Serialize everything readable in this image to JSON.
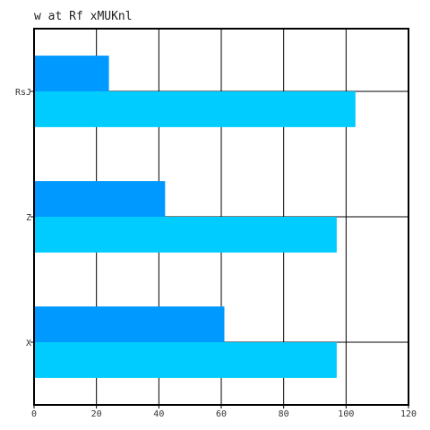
{
  "chart_data": {
    "type": "bar",
    "orientation": "horizontal",
    "title": "w at Rf xMUKnl",
    "xlabel": "",
    "ylabel": "",
    "categories": [
      "X",
      "Z",
      "RsJ"
    ],
    "series": [
      {
        "values": [
          61,
          42,
          24
        ],
        "color": "#0099ff"
      },
      {
        "values": [
          97,
          97,
          103
        ],
        "color": "#00ccff"
      }
    ],
    "xlim": [
      0,
      120
    ],
    "xticks": [
      0,
      20,
      40,
      60,
      80,
      100,
      120
    ],
    "grid": true,
    "legend": "none"
  }
}
